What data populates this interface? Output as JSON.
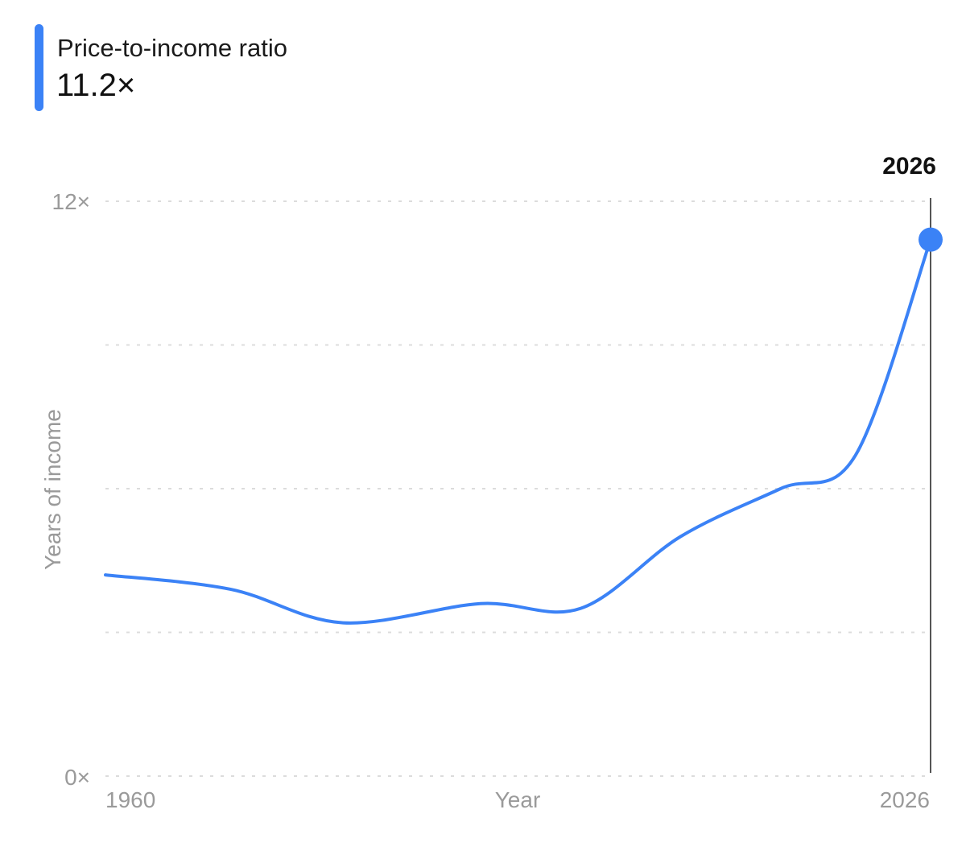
{
  "legend": {
    "label": "Price-to-income ratio",
    "value": "11.2×",
    "color": "#3b82f6"
  },
  "cursor": {
    "label": "2026"
  },
  "chart_data": {
    "type": "line",
    "title": "",
    "xlabel": "Year",
    "ylabel": "Years of income",
    "xlim": [
      1960,
      2026
    ],
    "ylim": [
      0,
      12
    ],
    "x_tick_labels": [
      "1960",
      "2026"
    ],
    "y_tick_labels": [
      "0×",
      "12×"
    ],
    "grid": true,
    "series": [
      {
        "color": "#3b82f6",
        "x": [
          1960,
          1970,
          1979,
          1990,
          1998,
          2006,
          2014,
          2020,
          2026
        ],
        "y": [
          4.2,
          3.9,
          3.2,
          3.6,
          3.5,
          5.0,
          6.0,
          6.7,
          11.2
        ]
      }
    ]
  }
}
